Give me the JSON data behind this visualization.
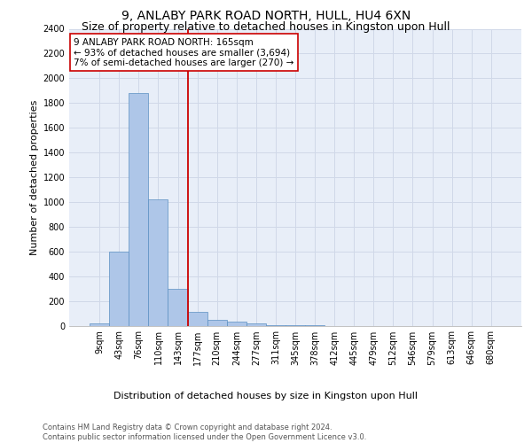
{
  "title": "9, ANLABY PARK ROAD NORTH, HULL, HU4 6XN",
  "subtitle": "Size of property relative to detached houses in Kingston upon Hull",
  "xlabel_bottom": "Distribution of detached houses by size in Kingston upon Hull",
  "ylabel": "Number of detached properties",
  "categories": [
    "9sqm",
    "43sqm",
    "76sqm",
    "110sqm",
    "143sqm",
    "177sqm",
    "210sqm",
    "244sqm",
    "277sqm",
    "311sqm",
    "345sqm",
    "378sqm",
    "412sqm",
    "445sqm",
    "479sqm",
    "512sqm",
    "546sqm",
    "579sqm",
    "613sqm",
    "646sqm",
    "680sqm"
  ],
  "values": [
    15,
    600,
    1880,
    1020,
    295,
    110,
    50,
    30,
    18,
    5,
    2,
    1,
    0,
    0,
    0,
    0,
    0,
    0,
    0,
    0,
    0
  ],
  "bar_color": "#aec6e8",
  "bar_edge_color": "#5a8fc2",
  "vline_x": 4.5,
  "vline_color": "#cc0000",
  "annotation_text": "9 ANLABY PARK ROAD NORTH: 165sqm\n← 93% of detached houses are smaller (3,694)\n7% of semi-detached houses are larger (270) →",
  "annotation_box_color": "#cc0000",
  "ylim": [
    0,
    2400
  ],
  "yticks": [
    0,
    200,
    400,
    600,
    800,
    1000,
    1200,
    1400,
    1600,
    1800,
    2000,
    2200,
    2400
  ],
  "grid_color": "#d0d8e8",
  "bg_color": "#e8eef8",
  "footer": "Contains HM Land Registry data © Crown copyright and database right 2024.\nContains public sector information licensed under the Open Government Licence v3.0.",
  "title_fontsize": 10,
  "subtitle_fontsize": 9,
  "ylabel_fontsize": 8,
  "tick_fontsize": 7,
  "annot_fontsize": 7.5,
  "footer_fontsize": 6,
  "xlabel_fontsize": 8
}
